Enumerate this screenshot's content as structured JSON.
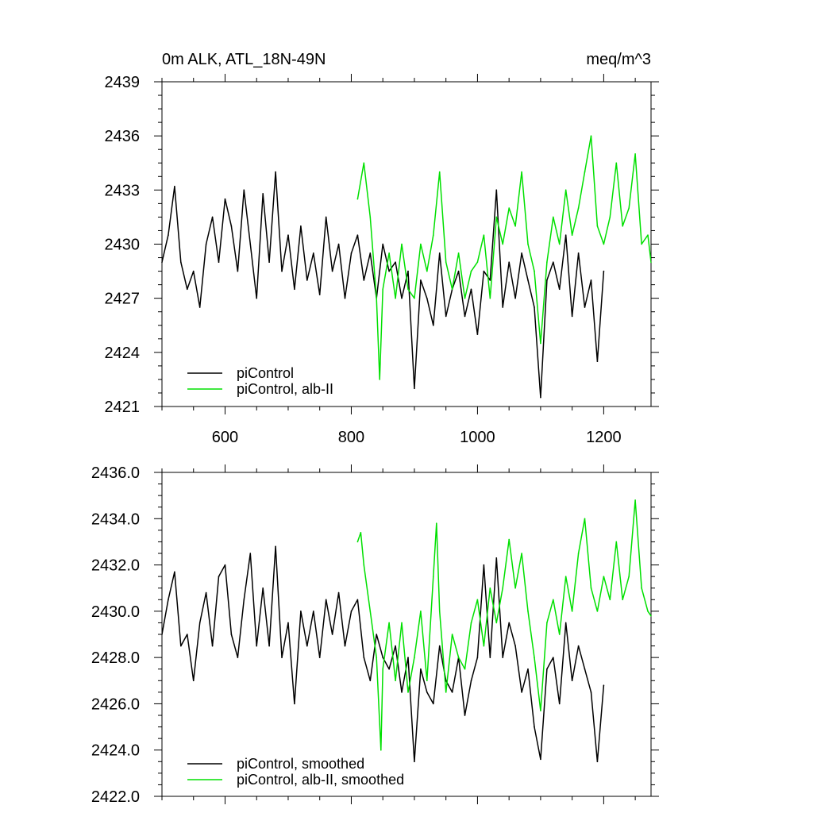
{
  "chart_data": [
    {
      "type": "line",
      "title_left": "0m ALK, ATL_18N-49N",
      "title_right": "meq/m^3",
      "xlim": [
        500,
        1275
      ],
      "ylim": [
        2421,
        2439
      ],
      "xticks": [
        600,
        800,
        1000,
        1200
      ],
      "xtick_labels": [
        "600",
        "800",
        "1000",
        "1200"
      ],
      "yticks": [
        2421,
        2424,
        2427,
        2430,
        2433,
        2436,
        2439
      ],
      "ytick_labels": [
        "2421",
        "2424",
        "2427",
        "2430",
        "2433",
        "2436",
        "2439"
      ],
      "legend": [
        "piControl",
        "piControl, alb-II"
      ],
      "series": [
        {
          "name": "piControl",
          "color": "#000000",
          "x": [
            500,
            510,
            520,
            530,
            540,
            550,
            560,
            570,
            580,
            590,
            600,
            610,
            620,
            630,
            640,
            650,
            660,
            670,
            680,
            690,
            700,
            710,
            720,
            730,
            740,
            750,
            760,
            770,
            780,
            790,
            800,
            810,
            820,
            830,
            840,
            850,
            860,
            870,
            880,
            890,
            900,
            910,
            920,
            930,
            940,
            950,
            960,
            970,
            980,
            990,
            1000,
            1010,
            1020,
            1030,
            1040,
            1050,
            1060,
            1070,
            1080,
            1090,
            1100,
            1110,
            1120,
            1130,
            1140,
            1150,
            1160,
            1170,
            1180,
            1190,
            1200
          ],
          "values": [
            2429.0,
            2430.5,
            2433.2,
            2429.0,
            2427.5,
            2428.5,
            2426.5,
            2430.0,
            2431.5,
            2429.0,
            2432.5,
            2431.0,
            2428.5,
            2433.0,
            2430.0,
            2427.0,
            2432.8,
            2429.0,
            2434.0,
            2428.5,
            2430.5,
            2427.5,
            2431.0,
            2428.0,
            2429.5,
            2427.2,
            2431.5,
            2428.5,
            2430.0,
            2427.0,
            2429.5,
            2430.5,
            2428.0,
            2429.5,
            2427.0,
            2430.0,
            2428.5,
            2429.0,
            2427.0,
            2428.5,
            2422.0,
            2428.0,
            2427.0,
            2425.5,
            2429.5,
            2426.0,
            2427.5,
            2428.5,
            2426.0,
            2427.5,
            2425.0,
            2428.5,
            2428.0,
            2433.0,
            2426.5,
            2429.0,
            2427.0,
            2429.5,
            2428.0,
            2426.5,
            2421.5,
            2428.0,
            2429.0,
            2427.5,
            2430.5,
            2426.0,
            2429.5,
            2426.5,
            2428.0,
            2423.5,
            2428.5
          ]
        },
        {
          "name": "piControl, alb-II",
          "color": "#00e000",
          "x": [
            810,
            820,
            830,
            840,
            845,
            850,
            860,
            870,
            880,
            890,
            900,
            910,
            920,
            930,
            940,
            950,
            960,
            970,
            980,
            990,
            1000,
            1010,
            1020,
            1030,
            1040,
            1050,
            1060,
            1070,
            1080,
            1090,
            1100,
            1110,
            1120,
            1130,
            1140,
            1150,
            1160,
            1170,
            1180,
            1190,
            1200,
            1210,
            1220,
            1230,
            1240,
            1250,
            1260,
            1270,
            1275
          ],
          "values": [
            2432.5,
            2434.5,
            2431.5,
            2427.0,
            2422.5,
            2427.5,
            2429.5,
            2427.0,
            2430.0,
            2427.5,
            2427.0,
            2430.0,
            2428.5,
            2430.5,
            2434.0,
            2429.0,
            2427.5,
            2429.5,
            2427.0,
            2428.5,
            2429.0,
            2430.5,
            2427.0,
            2431.5,
            2430.0,
            2432.0,
            2431.0,
            2434.0,
            2430.0,
            2428.5,
            2424.5,
            2429.0,
            2431.5,
            2430.0,
            2433.0,
            2430.5,
            2432.0,
            2434.0,
            2436.0,
            2431.0,
            2430.0,
            2431.5,
            2434.5,
            2431.0,
            2432.0,
            2435.0,
            2430.0,
            2430.5,
            2429.0
          ]
        }
      ]
    },
    {
      "type": "line",
      "title_left": "",
      "title_right": "",
      "xlim": [
        500,
        1275
      ],
      "ylim": [
        2422,
        2436
      ],
      "xticks": [
        600,
        800,
        1000,
        1200
      ],
      "xtick_labels": [],
      "yticks": [
        2422,
        2424,
        2426,
        2428,
        2430,
        2432,
        2434,
        2436
      ],
      "ytick_labels": [
        "2422.0",
        "2424.0",
        "2426.0",
        "2428.0",
        "2430.0",
        "2432.0",
        "2434.0",
        "2436.0"
      ],
      "legend": [
        "piControl, smoothed",
        "piControl, alb-II, smoothed"
      ],
      "series": [
        {
          "name": "piControl, smoothed",
          "color": "#000000",
          "x": [
            500,
            510,
            520,
            530,
            540,
            550,
            560,
            570,
            580,
            590,
            600,
            610,
            620,
            630,
            640,
            650,
            660,
            670,
            680,
            690,
            700,
            710,
            720,
            730,
            740,
            750,
            760,
            770,
            780,
            790,
            800,
            810,
            820,
            830,
            840,
            850,
            860,
            870,
            880,
            890,
            900,
            910,
            920,
            930,
            940,
            950,
            960,
            970,
            980,
            990,
            1000,
            1010,
            1020,
            1030,
            1040,
            1050,
            1060,
            1070,
            1080,
            1090,
            1100,
            1110,
            1120,
            1130,
            1140,
            1150,
            1160,
            1170,
            1180,
            1190,
            1200
          ],
          "values": [
            2429.0,
            2430.5,
            2431.7,
            2428.5,
            2429.0,
            2427.0,
            2429.5,
            2430.8,
            2428.5,
            2431.5,
            2432.0,
            2429.0,
            2428.0,
            2430.5,
            2432.5,
            2428.5,
            2431.0,
            2428.5,
            2432.8,
            2428.0,
            2429.5,
            2426.0,
            2430.0,
            2428.5,
            2430.0,
            2428.0,
            2430.5,
            2429.0,
            2430.8,
            2428.5,
            2430.0,
            2430.5,
            2428.0,
            2427.0,
            2429.0,
            2428.0,
            2427.5,
            2428.5,
            2426.5,
            2428.0,
            2423.5,
            2427.5,
            2426.5,
            2426.0,
            2428.5,
            2427.0,
            2426.5,
            2428.0,
            2425.5,
            2427.0,
            2428.0,
            2432.0,
            2428.0,
            2432.3,
            2428.0,
            2429.5,
            2428.5,
            2426.5,
            2427.5,
            2425.0,
            2423.6,
            2427.5,
            2428.0,
            2426.0,
            2429.5,
            2427.0,
            2428.5,
            2427.5,
            2426.5,
            2423.5,
            2426.8
          ]
        },
        {
          "name": "piControl, alb-II, smoothed",
          "color": "#00e000",
          "x": [
            810,
            815,
            820,
            830,
            840,
            847,
            850,
            860,
            870,
            880,
            890,
            900,
            910,
            920,
            930,
            935,
            940,
            950,
            960,
            970,
            980,
            990,
            1000,
            1010,
            1020,
            1030,
            1040,
            1050,
            1060,
            1070,
            1080,
            1090,
            1100,
            1110,
            1120,
            1130,
            1140,
            1150,
            1160,
            1170,
            1180,
            1190,
            1200,
            1210,
            1220,
            1230,
            1240,
            1250,
            1260,
            1270,
            1275
          ],
          "values": [
            2433.0,
            2433.4,
            2432.0,
            2430.0,
            2428.0,
            2424.0,
            2427.5,
            2429.5,
            2427.0,
            2429.5,
            2426.5,
            2428.0,
            2430.0,
            2427.0,
            2431.5,
            2433.8,
            2430.0,
            2426.5,
            2429.0,
            2428.0,
            2427.5,
            2429.5,
            2430.5,
            2428.5,
            2431.0,
            2429.5,
            2431.0,
            2433.1,
            2431.0,
            2432.5,
            2430.0,
            2428.0,
            2425.7,
            2429.5,
            2430.5,
            2429.0,
            2431.5,
            2430.0,
            2432.5,
            2434.0,
            2431.0,
            2430.0,
            2431.5,
            2430.5,
            2433.0,
            2430.5,
            2431.5,
            2434.8,
            2431.0,
            2430.0,
            2429.8
          ]
        }
      ]
    }
  ]
}
